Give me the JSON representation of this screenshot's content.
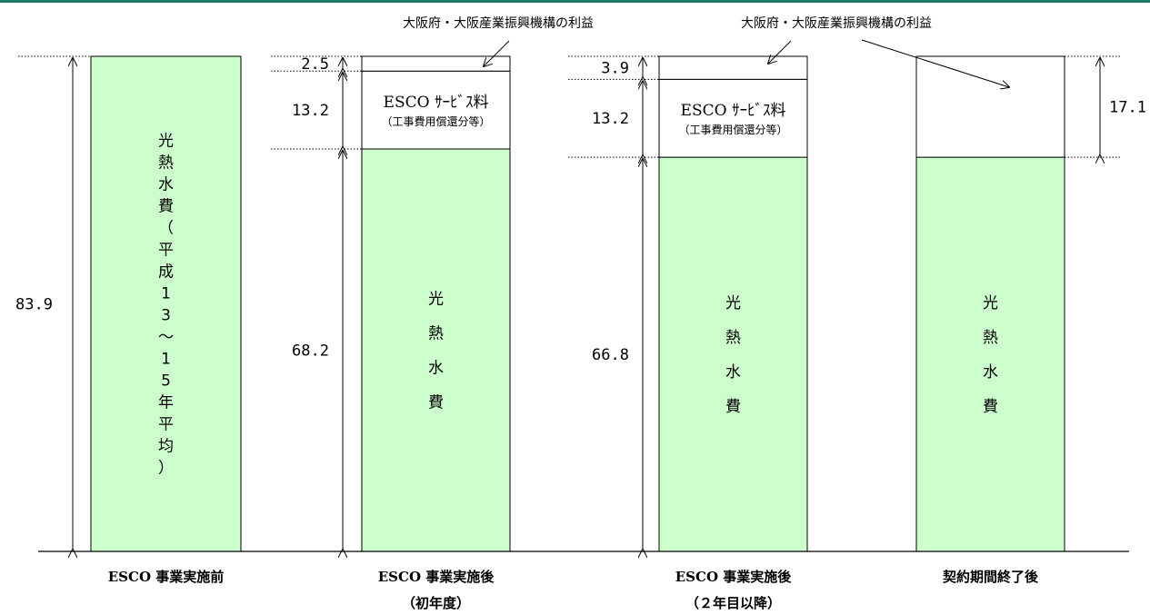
{
  "chart_data": {
    "type": "bar",
    "stacked": true,
    "categories": [
      {
        "line1": "ESCO 事業実施前",
        "line2": ""
      },
      {
        "line1": "ESCO 事業実施後",
        "line2": "（初年度）"
      },
      {
        "line1": "ESCO 事業実施後",
        "line2": "（２年目以降）"
      },
      {
        "line1": "契約期間終了後",
        "line2": ""
      }
    ],
    "bars": [
      {
        "total": 83.9,
        "total_label": "83.9",
        "segments": [
          {
            "kind": "utility",
            "value": 83.9,
            "chars": [
              "光",
              "熱",
              "水",
              "費",
              "（",
              "平",
              "成",
              "1",
              "3",
              "～",
              "1",
              "5",
              "年",
              "平",
              "均",
              "）"
            ]
          }
        ]
      },
      {
        "total": 83.9,
        "segments": [
          {
            "kind": "utility",
            "value": 68.2,
            "label": "68.2",
            "chars": [
              "光",
              "熱",
              "水",
              "費"
            ]
          },
          {
            "kind": "service",
            "value": 13.2,
            "label": "13.2",
            "text": "ESCO ｻｰﾋﾞｽ料",
            "sub": "（工事費用償還分等）"
          },
          {
            "kind": "profit",
            "value": 2.5,
            "label": "2.5"
          }
        ]
      },
      {
        "total": 83.9,
        "segments": [
          {
            "kind": "utility",
            "value": 66.8,
            "label": "66.8",
            "chars": [
              "光",
              "熱",
              "水",
              "費"
            ]
          },
          {
            "kind": "service",
            "value": 13.2,
            "label": "13.2",
            "text": "ESCO ｻｰﾋﾞｽ料",
            "sub": "（工事費用償還分等）"
          },
          {
            "kind": "profit",
            "value": 3.9,
            "label": "3.9"
          }
        ]
      },
      {
        "total": 83.9,
        "segments": [
          {
            "kind": "utility",
            "value": 66.8,
            "chars": [
              "光",
              "熱",
              "水",
              "費"
            ]
          },
          {
            "kind": "profit",
            "value": 17.1,
            "label": "17.1"
          }
        ]
      }
    ],
    "annotations": [
      {
        "text": "大阪府・大阪産業振興機構の利益",
        "target_bar": 1
      },
      {
        "text": "大阪府・大阪産業振興機構の利益",
        "target_bar": 2
      }
    ],
    "ylim": [
      0,
      83.9
    ],
    "grid": false,
    "colors": {
      "utility": "#ccffcc",
      "service": "#ffffff",
      "profit": "#ffffff",
      "accent": "#1f7a6e"
    }
  }
}
